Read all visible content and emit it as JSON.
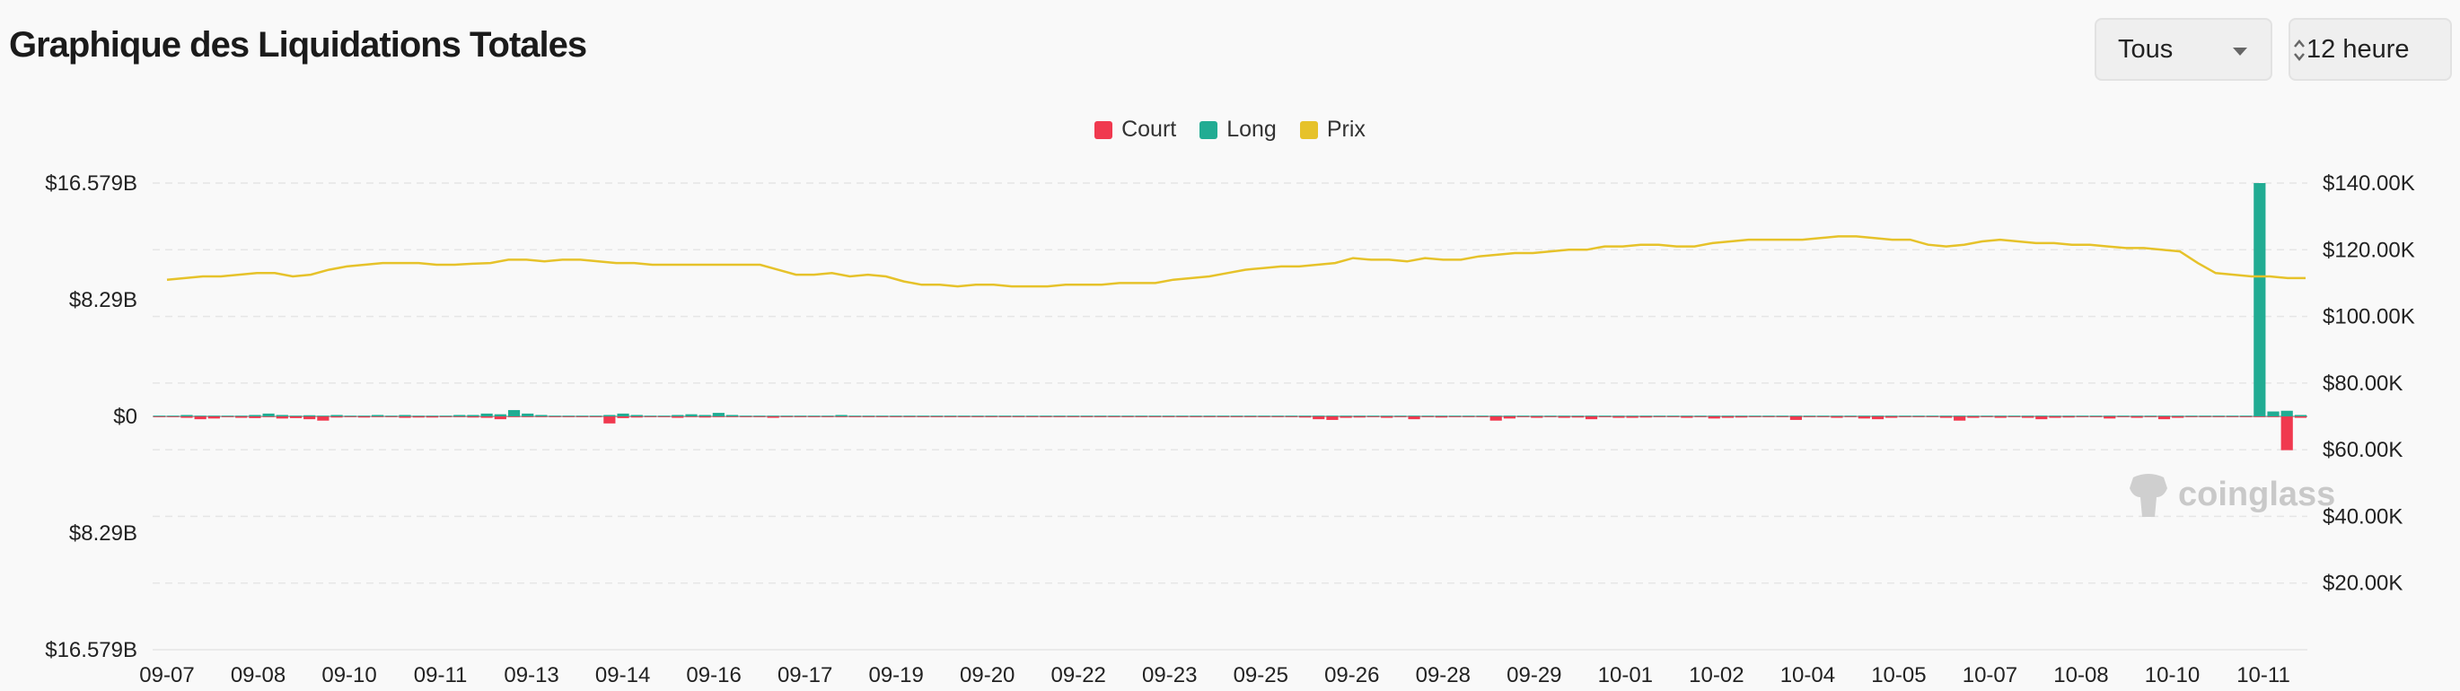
{
  "header": {
    "title": "Graphique des Liquidations Totales",
    "type_select_value": "Tous",
    "interval_select_value": "12 heure"
  },
  "watermark": "coinglass",
  "colors": {
    "court": "#f0394f",
    "long": "#21ac93",
    "prix": "#e6c22a"
  },
  "chart_data": {
    "type": "bar",
    "title": "",
    "legend_position": "top-center",
    "grid": true,
    "left_ticks": [
      "$16.579B",
      "$8.29B",
      "$0",
      "$8.29B",
      "$16.579B"
    ],
    "right_ticks": [
      "$140.00K",
      "$120.00K",
      "$100.00K",
      "$80.00K",
      "$60.00K",
      "$40.00K",
      "$20.00K"
    ],
    "x_tick_labels": [
      "09-07",
      "09-08",
      "09-10",
      "09-11",
      "09-13",
      "09-14",
      "09-16",
      "09-17",
      "09-19",
      "09-20",
      "09-22",
      "09-23",
      "09-25",
      "09-26",
      "09-28",
      "09-29",
      "10-01",
      "10-02",
      "10-04",
      "10-05",
      "10-07",
      "10-08",
      "10-10",
      "10-11"
    ],
    "ylim_liquidations": [
      -16.579,
      16.579
    ],
    "ylim_price": [
      0,
      140000
    ],
    "series": [
      {
        "name": "Court",
        "unit": "B USD",
        "values": [
          -0.05,
          -0.05,
          -0.1,
          -0.2,
          -0.15,
          -0.05,
          -0.1,
          -0.12,
          -0.05,
          -0.15,
          -0.12,
          -0.2,
          -0.3,
          -0.08,
          -0.05,
          -0.08,
          -0.05,
          -0.05,
          -0.1,
          -0.08,
          -0.08,
          -0.05,
          -0.05,
          -0.08,
          -0.1,
          -0.2,
          -0.05,
          -0.05,
          -0.05,
          -0.05,
          -0.05,
          -0.05,
          -0.05,
          -0.5,
          -0.12,
          -0.08,
          -0.05,
          -0.05,
          -0.1,
          -0.05,
          -0.08,
          -0.05,
          -0.05,
          -0.05,
          -0.05,
          -0.1,
          -0.05,
          -0.05,
          -0.05,
          -0.05,
          -0.05,
          -0.05,
          -0.05,
          -0.05,
          -0.05,
          -0.05,
          -0.05,
          -0.05,
          -0.05,
          -0.05,
          -0.05,
          -0.05,
          -0.05,
          -0.05,
          -0.05,
          -0.05,
          -0.05,
          -0.05,
          -0.05,
          -0.05,
          -0.05,
          -0.05,
          -0.05,
          -0.05,
          -0.05,
          -0.05,
          -0.05,
          -0.05,
          -0.05,
          -0.05,
          -0.05,
          -0.05,
          -0.05,
          -0.05,
          -0.08,
          -0.2,
          -0.25,
          -0.1,
          -0.08,
          -0.05,
          -0.1,
          -0.05,
          -0.2,
          -0.05,
          -0.08,
          -0.05,
          -0.05,
          -0.05,
          -0.3,
          -0.15,
          -0.05,
          -0.1,
          -0.05,
          -0.1,
          -0.08,
          -0.2,
          -0.05,
          -0.1,
          -0.1,
          -0.08,
          -0.05,
          -0.05,
          -0.1,
          -0.05,
          -0.15,
          -0.1,
          -0.08,
          -0.05,
          -0.05,
          -0.05,
          -0.25,
          -0.05,
          -0.05,
          -0.1,
          -0.05,
          -0.15,
          -0.2,
          -0.1,
          -0.05,
          -0.05,
          -0.05,
          -0.1,
          -0.3,
          -0.1,
          -0.05,
          -0.1,
          -0.05,
          -0.1,
          -0.2,
          -0.1,
          -0.08,
          -0.05,
          -0.05,
          -0.15,
          -0.05,
          -0.1,
          -0.05,
          -0.2,
          -0.1,
          -0.05,
          -0.05,
          -0.05,
          -0.05,
          -0.05,
          -0.05,
          -0.05,
          -2.4,
          -0.1,
          -0.05,
          -0.15
        ]
      },
      {
        "name": "Long",
        "unit": "B USD",
        "values": [
          0.05,
          0.05,
          0.1,
          0.05,
          0.05,
          0.05,
          0.05,
          0.1,
          0.2,
          0.1,
          0.05,
          0.08,
          0.05,
          0.1,
          0.05,
          0.05,
          0.1,
          0.05,
          0.1,
          0.05,
          0.05,
          0.05,
          0.1,
          0.1,
          0.2,
          0.15,
          0.45,
          0.2,
          0.1,
          0.05,
          0.05,
          0.05,
          0.05,
          0.1,
          0.2,
          0.1,
          0.05,
          0.05,
          0.1,
          0.15,
          0.1,
          0.25,
          0.1,
          0.05,
          0.05,
          0.05,
          0.05,
          0.05,
          0.05,
          0.05,
          0.1,
          0.05,
          0.05,
          0.05,
          0.05,
          0.05,
          0.05,
          0.05,
          0.05,
          0.05,
          0.05,
          0.05,
          0.05,
          0.05,
          0.05,
          0.05,
          0.05,
          0.05,
          0.05,
          0.05,
          0.05,
          0.05,
          0.05,
          0.05,
          0.05,
          0.05,
          0.05,
          0.05,
          0.05,
          0.05,
          0.05,
          0.05,
          0.05,
          0.05,
          0.05,
          0.05,
          0.05,
          0.05,
          0.05,
          0.05,
          0.05,
          0.05,
          0.05,
          0.05,
          0.05,
          0.05,
          0.05,
          0.05,
          0.05,
          0.05,
          0.05,
          0.05,
          0.05,
          0.05,
          0.05,
          0.05,
          0.05,
          0.05,
          0.05,
          0.05,
          0.05,
          0.05,
          0.05,
          0.05,
          0.05,
          0.05,
          0.05,
          0.05,
          0.05,
          0.05,
          0.05,
          0.05,
          0.05,
          0.05,
          0.05,
          0.05,
          0.05,
          0.05,
          0.05,
          0.05,
          0.05,
          0.05,
          0.05,
          0.05,
          0.05,
          0.05,
          0.05,
          0.05,
          0.05,
          0.05,
          0.05,
          0.05,
          0.05,
          0.05,
          0.05,
          0.05,
          0.05,
          0.05,
          0.05,
          0.05,
          0.05,
          0.05,
          0.05,
          0.05,
          16.579,
          0.35,
          0.4,
          0.1
        ]
      },
      {
        "name": "Prix",
        "unit": "USD",
        "values": [
          111000,
          111500,
          112000,
          112000,
          112500,
          113000,
          113000,
          112000,
          112500,
          114000,
          115000,
          115500,
          116000,
          116000,
          116000,
          115500,
          115500,
          115800,
          116000,
          117000,
          117000,
          116500,
          117000,
          117000,
          116500,
          116000,
          116000,
          115500,
          115500,
          115500,
          115500,
          115500,
          115500,
          115500,
          114000,
          112500,
          112500,
          113000,
          112000,
          112500,
          112000,
          110500,
          109500,
          109500,
          109000,
          109500,
          109500,
          109000,
          109000,
          109000,
          109500,
          109500,
          109500,
          110000,
          110000,
          110000,
          111000,
          111500,
          112000,
          113000,
          114000,
          114500,
          115000,
          115000,
          115500,
          116000,
          117500,
          117000,
          117000,
          116500,
          117500,
          117000,
          117000,
          118000,
          118500,
          119000,
          119000,
          119500,
          120000,
          120000,
          121000,
          121000,
          121500,
          121500,
          121000,
          121000,
          122000,
          122500,
          123000,
          123000,
          123000,
          123000,
          123500,
          124000,
          124000,
          123500,
          123000,
          123000,
          121500,
          121000,
          121500,
          122500,
          123000,
          122500,
          122000,
          122000,
          121500,
          121500,
          121000,
          120500,
          120500,
          120000,
          119500,
          116000,
          113000,
          112500,
          112000,
          112000,
          111500,
          111500
        ]
      }
    ]
  }
}
